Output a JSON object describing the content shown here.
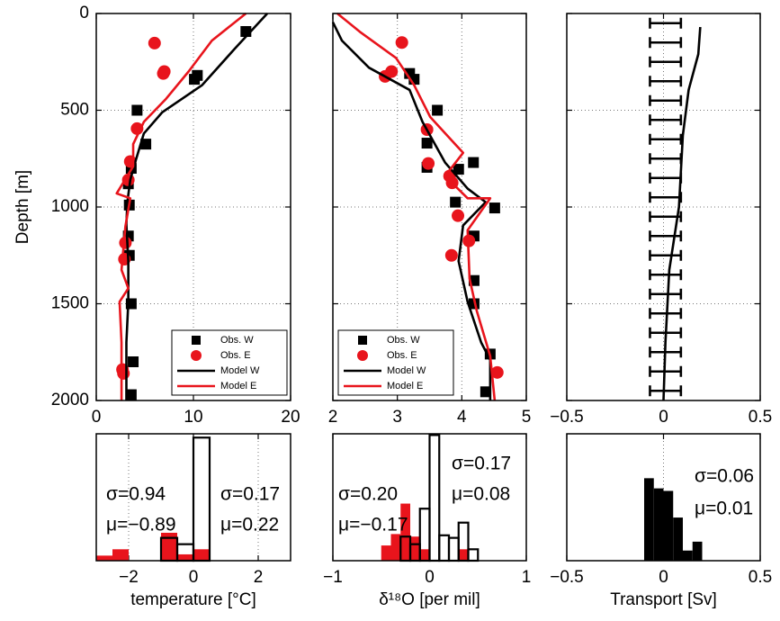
{
  "chart_data": [
    {
      "type": "profile",
      "xlim": [
        0,
        20
      ],
      "xticks": [
        0,
        10,
        20
      ],
      "ylim": [
        0,
        2000
      ],
      "yticks": [
        0,
        500,
        1000,
        1500,
        2000
      ],
      "y_inverted": true,
      "grid": true,
      "ylabel": "Depth [m]",
      "legend": "lower right",
      "series": [
        {
          "name": "Obs. W",
          "color": "#000000",
          "marker": "square",
          "values": [
            15.4,
            10.4,
            10.1,
            4.2,
            5.1,
            3.6,
            3.3,
            3.4,
            3.3,
            3.4,
            3.6,
            3.8,
            3.6
          ],
          "depth": [
            93,
            320,
            340,
            500,
            675,
            800,
            880,
            990,
            1150,
            1250,
            1500,
            1800,
            1970
          ]
        },
        {
          "name": "Obs. E",
          "color": "#e8141c",
          "marker": "circle",
          "values": [
            6.0,
            7.0,
            6.9,
            4.2,
            3.5,
            3.3,
            3.0,
            2.9,
            2.7,
            2.8
          ],
          "depth": [
            153,
            300,
            310,
            595,
            765,
            860,
            1185,
            1270,
            1840,
            1860
          ]
        },
        {
          "name": "Model W",
          "color": "#000000",
          "marker": "line",
          "values": [
            17.6,
            14.2,
            10.9,
            6.8,
            4.9,
            4.0,
            3.5,
            3.2,
            3.1,
            3.3,
            3.3,
            3.1,
            3.1
          ],
          "depth": [
            0,
            185,
            370,
            510,
            620,
            770,
            860,
            975,
            1090,
            1280,
            1490,
            1700,
            2000
          ]
        },
        {
          "name": "Model E",
          "color": "#e8141c",
          "marker": "line",
          "values": [
            15.4,
            11.9,
            9.5,
            7.2,
            4.9,
            3.8,
            3.8,
            2.1,
            3.5,
            3.0,
            2.6,
            3.3,
            2.4,
            2.6,
            2.6
          ],
          "depth": [
            0,
            140,
            300,
            440,
            560,
            675,
            790,
            930,
            955,
            1100,
            1325,
            1420,
            1490,
            1700,
            2000
          ]
        }
      ]
    },
    {
      "type": "profile",
      "xlim": [
        2,
        5
      ],
      "xticks": [
        2,
        3,
        4,
        5
      ],
      "ylim": [
        0,
        2000
      ],
      "yticks": [
        0,
        500,
        1000,
        1500,
        2000
      ],
      "ytick_labels": false,
      "y_inverted": true,
      "grid": true,
      "legend": "lower left",
      "series": [
        {
          "name": "Obs. W",
          "color": "#000000",
          "marker": "square",
          "values": [
            3.19,
            3.26,
            3.62,
            3.46,
            3.46,
            3.95,
            4.18,
            3.9,
            4.51,
            4.19,
            4.19,
            4.19,
            4.44,
            4.37
          ],
          "depth": [
            310,
            340,
            500,
            670,
            795,
            805,
            770,
            975,
            1005,
            1150,
            1380,
            1500,
            1760,
            1955
          ]
        },
        {
          "name": "Obs. E",
          "color": "#e8141c",
          "marker": "circle",
          "values": [
            3.07,
            2.91,
            2.81,
            3.46,
            3.48,
            3.81,
            3.85,
            3.94,
            4.11,
            3.84,
            4.55
          ],
          "depth": [
            150,
            300,
            325,
            600,
            775,
            840,
            875,
            1045,
            1175,
            1250,
            1855
          ]
        },
        {
          "name": "Model W",
          "color": "#000000",
          "marker": "line",
          "values": [
            2.0,
            2.14,
            2.56,
            3.19,
            3.39,
            3.74,
            4.09,
            4.37,
            4.02,
            3.95,
            4.09,
            4.3,
            4.44,
            4.44
          ],
          "depth": [
            45,
            140,
            280,
            395,
            560,
            770,
            905,
            975,
            1095,
            1280,
            1490,
            1700,
            1790,
            2000
          ]
        },
        {
          "name": "Model E",
          "color": "#e8141c",
          "marker": "line",
          "values": [
            2.07,
            2.42,
            2.98,
            3.26,
            3.51,
            4.02,
            3.74,
            4.09,
            4.44,
            4.09,
            4.12,
            4.23,
            4.44,
            4.51
          ],
          "depth": [
            0,
            95,
            230,
            370,
            535,
            720,
            840,
            955,
            955,
            1120,
            1370,
            1535,
            1770,
            2000
          ]
        }
      ]
    },
    {
      "type": "profile",
      "xlim": [
        -0.5,
        0.5
      ],
      "xticks": [
        {
          "value": -0.5,
          "label": "−0.5"
        },
        0,
        0.5
      ],
      "ylim": [
        0,
        2000
      ],
      "yticks": [
        0,
        500,
        1000,
        1500,
        2000
      ],
      "ytick_labels": false,
      "y_inverted": true,
      "grid": true,
      "series": [
        {
          "color": "#000000",
          "marker": "line",
          "values": [
            0.19,
            0.18,
            0.13,
            0.1,
            0.08,
            0.03,
            0.01,
            0.0
          ],
          "depth": [
            70,
            210,
            395,
            630,
            1000,
            1325,
            1700,
            2000
          ]
        }
      ],
      "errorbars": {
        "color": "#000000",
        "depth": [
          50,
          150,
          250,
          350,
          450,
          550,
          650,
          750,
          850,
          950,
          1050,
          1150,
          1250,
          1350,
          1450,
          1550,
          1650,
          1750,
          1850,
          1950
        ],
        "values": [
          0.01,
          0.01,
          0.01,
          0.01,
          0.01,
          0.01,
          0.01,
          0.01,
          0.01,
          0.01,
          0.01,
          0.01,
          0.01,
          0.01,
          0.01,
          0.01,
          0.01,
          0.01,
          0.01,
          0.01
        ],
        "errors": [
          0.08,
          0.08,
          0.08,
          0.08,
          0.08,
          0.08,
          0.08,
          0.08,
          0.08,
          0.08,
          0.08,
          0.08,
          0.08,
          0.08,
          0.08,
          0.08,
          0.08,
          0.08,
          0.08,
          0.08
        ]
      }
    },
    {
      "type": "histogram",
      "xlim": [
        -3,
        3
      ],
      "xticks": [
        {
          "value": -2,
          "label": "−2"
        },
        0,
        2
      ],
      "ylim": [
        0,
        1
      ],
      "grid": true,
      "xlabel": "temperature [°C]",
      "bins": [
        -3,
        -2.5,
        -2,
        -1.5,
        -1,
        -0.5,
        0,
        0.5
      ],
      "series": [
        {
          "color": "#e8141c",
          "filled": true,
          "values": [
            0.04,
            0.09,
            0,
            0,
            0.22,
            0.05,
            0.09
          ]
        },
        {
          "color": "#000000",
          "filled": false,
          "values": [
            0,
            0,
            0,
            0,
            0.18,
            0.13,
            0.97
          ]
        }
      ],
      "annotations": [
        {
          "text": "σ=0.94",
          "color": "#e8141c"
        },
        {
          "text": "μ=−0.89",
          "color": "#e8141c"
        },
        {
          "text": "σ=0.17",
          "color": "#000000"
        },
        {
          "text": "μ=0.22",
          "color": "#000000"
        }
      ]
    },
    {
      "type": "histogram",
      "xlim": [
        -1,
        1
      ],
      "xticks": [
        {
          "value": -1,
          "label": "−1"
        },
        0,
        1
      ],
      "ylim": [
        0,
        1
      ],
      "grid": true,
      "xlabel": "δ¹⁸O [per mil]",
      "bins": [
        -0.5,
        -0.4,
        -0.3,
        -0.2,
        -0.1,
        0,
        0.1,
        0.2,
        0.3,
        0.4,
        0.5
      ],
      "series": [
        {
          "color": "#e8141c",
          "filled": true,
          "values": [
            0.12,
            0.21,
            0.45,
            0.19,
            0.09,
            0,
            0,
            0,
            0.09,
            0
          ]
        },
        {
          "color": "#000000",
          "filled": false,
          "values": [
            0,
            0,
            0.19,
            0.13,
            0.41,
            0.99,
            0.2,
            0.18,
            0.3,
            0.09
          ]
        }
      ],
      "annotations": [
        {
          "text": "σ=0.20",
          "color": "#e8141c"
        },
        {
          "text": "μ=−0.17",
          "color": "#e8141c"
        },
        {
          "text": "σ=0.17",
          "color": "#000000"
        },
        {
          "text": "μ=0.08",
          "color": "#000000"
        }
      ]
    },
    {
      "type": "histogram",
      "xlim": [
        -0.5,
        0.5
      ],
      "xticks": [
        {
          "value": -0.5,
          "label": "−0.5"
        },
        0,
        0.5
      ],
      "ylim": [
        0,
        1
      ],
      "grid": true,
      "xlabel": "Transport [Sv]",
      "bins": [
        -0.1,
        -0.05,
        0,
        0.05,
        0.1,
        0.15,
        0.2
      ],
      "series": [
        {
          "color": "#000000",
          "filled": true,
          "values": [
            0.65,
            0.57,
            0.55,
            0.34,
            0.08,
            0.15
          ]
        }
      ],
      "annotations": [
        {
          "text": "σ=0.06",
          "color": "#000000"
        },
        {
          "text": "μ=0.01",
          "color": "#000000"
        }
      ]
    }
  ]
}
